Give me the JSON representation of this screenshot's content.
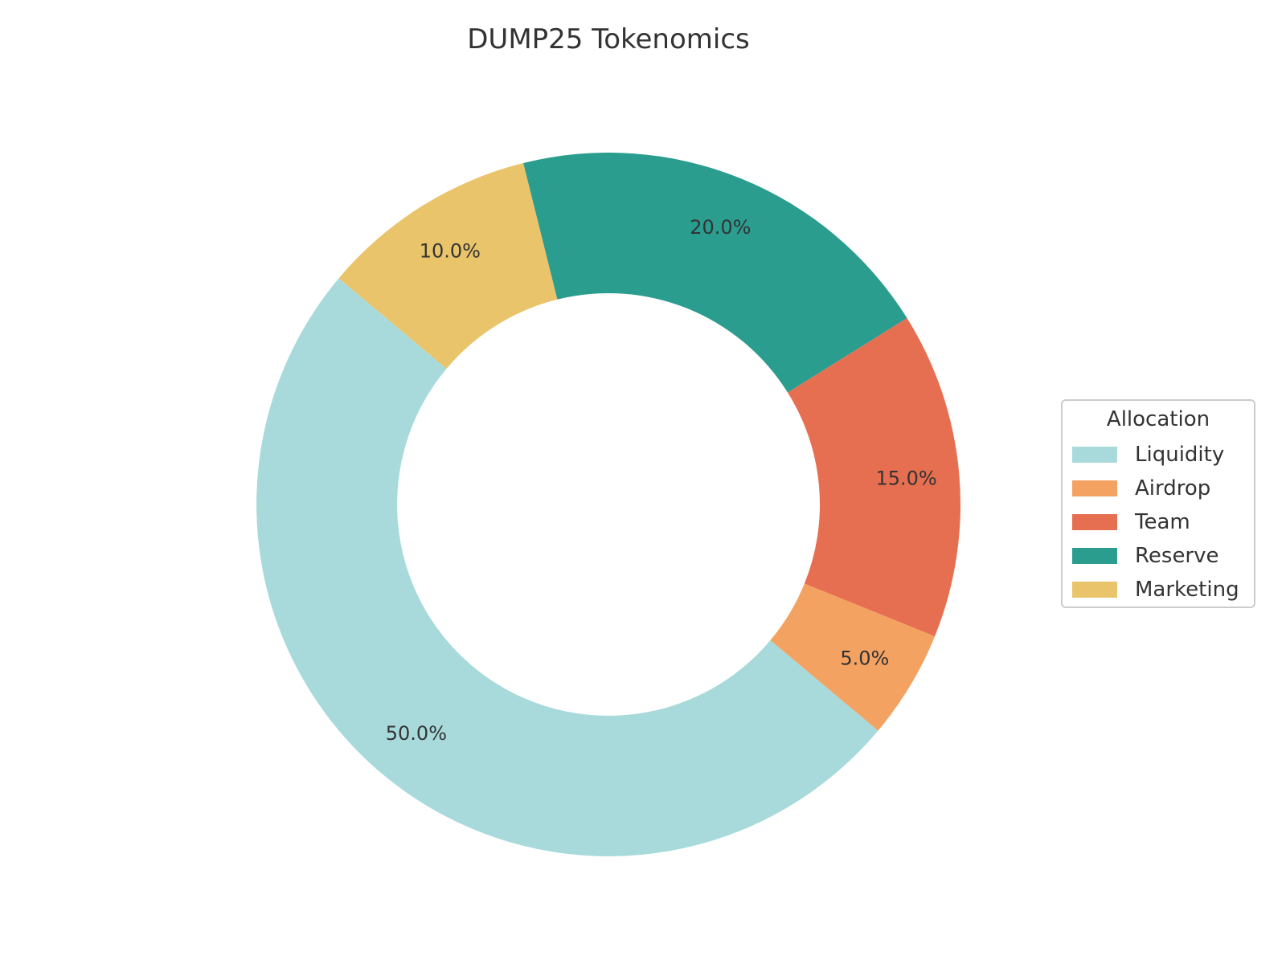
{
  "chart_data": {
    "type": "pie",
    "title": "DUMP25 Tokenomics",
    "donut": true,
    "categories": [
      "Liquidity",
      "Airdrop",
      "Team",
      "Reserve",
      "Marketing"
    ],
    "values": [
      50.0,
      5.0,
      15.0,
      20.0,
      10.0
    ],
    "value_labels": [
      "50.0%",
      "5.0%",
      "15.0%",
      "20.0%",
      "10.0%"
    ],
    "colors": [
      "#a8dadc",
      "#f4a261",
      "#e76f51",
      "#2a9d8f",
      "#e9c46a"
    ],
    "legend": {
      "title": "Allocation",
      "placement": "right"
    }
  }
}
